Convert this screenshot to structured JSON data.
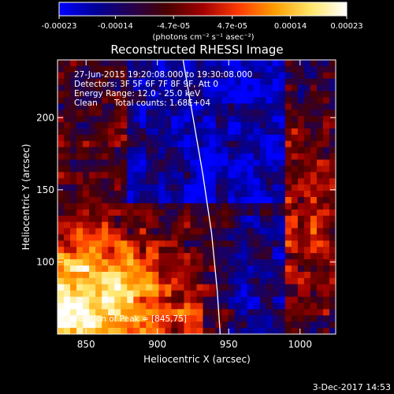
{
  "colorbar": {
    "ticks": [
      {
        "label": "-0.00023",
        "value": -0.00023
      },
      {
        "label": "-0.00014",
        "value": -0.00014
      },
      {
        "label": "-4.7e-05",
        "value": -4.7e-05
      },
      {
        "label": "4.7e-05",
        "value": 4.7e-05
      },
      {
        "label": "0.00014",
        "value": 0.00014
      },
      {
        "label": "0.00023",
        "value": 0.00023
      }
    ],
    "range": [
      -0.00023,
      0.00023
    ],
    "units": "(photons cm⁻² s⁻¹ asec⁻²)",
    "stops": [
      "#0000ff",
      "#00009a",
      "#23004e",
      "#4a0000",
      "#a10000",
      "#ff3b00",
      "#ff9d00",
      "#ffe66a",
      "#ffffff"
    ]
  },
  "chart_data": {
    "type": "heatmap",
    "title": "Reconstructed RHESSI Image",
    "xlabel": "Heliocentric X (arcsec)",
    "ylabel": "Heliocentric Y (arcsec)",
    "xlim": [
      830,
      1025
    ],
    "ylim": [
      50,
      240
    ],
    "xticks": [
      850,
      900,
      950,
      1000
    ],
    "yticks": [
      100,
      150,
      200
    ],
    "grid": false,
    "annotations": [
      "27-Jun-2015 19:20:08.000 to 19:30:08.000",
      "Detectors: 3F 5F 6F 7F 8F 9F, Att 0",
      "Energy Range: 12.0 - 25.0 keV",
      "Clean",
      "Total counts: 1.68E+04"
    ],
    "peak_label": "Position of Peak = [845,75]",
    "peak": [
      845,
      75
    ],
    "limb_curve": {
      "x": [
        918,
        925,
        932,
        938,
        942,
        944
      ],
      "y": [
        240,
        200,
        160,
        120,
        80,
        50
      ]
    }
  },
  "footer": {
    "date": "3-Dec-2017 14:53"
  }
}
